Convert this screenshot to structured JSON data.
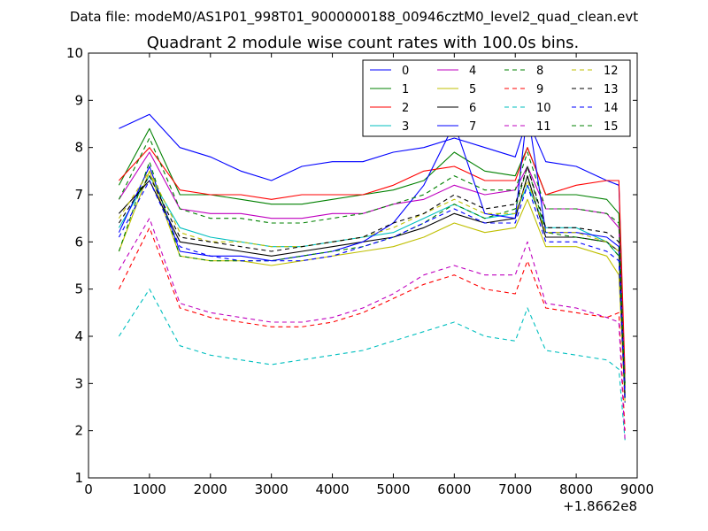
{
  "chart_data": {
    "type": "line",
    "suptitle": "Data file: modeM0/AS1P01_998T01_9000000188_00946cztM0_level2_quad_clean.evt",
    "title": "Quadrant 2 module wise count rates with 100.0s bins.",
    "xlabel": "",
    "ylabel": "",
    "x_offset_label": "+1.8662e8",
    "xlim": [
      0,
      9000
    ],
    "ylim": [
      1,
      10
    ],
    "x_ticks": [
      0,
      1000,
      2000,
      3000,
      4000,
      5000,
      6000,
      7000,
      8000,
      9000
    ],
    "x_tick_labels": [
      "0",
      "1000",
      "2000",
      "3000",
      "4000",
      "5000",
      "6000",
      "7000",
      "8000",
      "9000"
    ],
    "y_ticks": [
      1,
      2,
      3,
      4,
      5,
      6,
      7,
      8,
      9,
      10
    ],
    "y_tick_labels": [
      "1",
      "2",
      "3",
      "4",
      "5",
      "6",
      "7",
      "8",
      "9",
      "10"
    ],
    "grid": false,
    "legend_position": "top-right",
    "x": [
      500,
      1000,
      1500,
      2000,
      2500,
      3000,
      3500,
      4000,
      4500,
      5000,
      5500,
      6000,
      6500,
      7000,
      7200,
      7500,
      8000,
      8500,
      8700,
      8800
    ],
    "series": [
      {
        "name": "0",
        "color": "#0000ff",
        "dash": "solid",
        "values": [
          8.4,
          8.7,
          8.0,
          7.8,
          7.5,
          7.3,
          7.6,
          7.7,
          7.7,
          7.9,
          8.0,
          8.2,
          8.0,
          7.8,
          8.6,
          7.7,
          7.6,
          7.3,
          7.2,
          3.0
        ]
      },
      {
        "name": "1",
        "color": "#008000",
        "dash": "solid",
        "values": [
          7.2,
          8.4,
          7.0,
          7.0,
          6.9,
          6.8,
          6.8,
          6.9,
          7.0,
          7.1,
          7.3,
          7.9,
          7.5,
          7.4,
          8.0,
          7.0,
          7.0,
          6.9,
          6.6,
          3.0
        ]
      },
      {
        "name": "2",
        "color": "#ff0000",
        "dash": "solid",
        "values": [
          7.3,
          8.0,
          7.1,
          7.0,
          7.0,
          6.9,
          7.0,
          7.0,
          7.0,
          7.2,
          7.5,
          7.6,
          7.3,
          7.3,
          8.0,
          7.0,
          7.2,
          7.3,
          7.3,
          3.2
        ]
      },
      {
        "name": "3",
        "color": "#00bfbf",
        "dash": "solid",
        "values": [
          6.3,
          7.4,
          6.3,
          6.1,
          6.0,
          5.9,
          5.9,
          6.0,
          6.1,
          6.2,
          6.5,
          6.8,
          6.5,
          6.6,
          7.2,
          6.3,
          6.3,
          6.0,
          5.7,
          2.8
        ]
      },
      {
        "name": "4",
        "color": "#bf00bf",
        "dash": "solid",
        "values": [
          6.9,
          7.9,
          6.7,
          6.6,
          6.6,
          6.5,
          6.5,
          6.6,
          6.6,
          6.8,
          6.9,
          7.2,
          7.0,
          7.1,
          7.6,
          6.7,
          6.7,
          6.6,
          6.3,
          2.9
        ]
      },
      {
        "name": "5",
        "color": "#bfbf00",
        "dash": "solid",
        "values": [
          5.8,
          7.5,
          5.7,
          5.6,
          5.6,
          5.5,
          5.6,
          5.7,
          5.8,
          5.9,
          6.1,
          6.4,
          6.2,
          6.3,
          6.9,
          5.9,
          5.9,
          5.7,
          5.3,
          2.6
        ]
      },
      {
        "name": "6",
        "color": "#000000",
        "dash": "solid",
        "values": [
          6.6,
          7.3,
          6.0,
          5.9,
          5.8,
          5.7,
          5.8,
          5.9,
          6.0,
          6.1,
          6.3,
          6.6,
          6.4,
          6.5,
          7.4,
          6.1,
          6.1,
          6.0,
          5.8,
          2.7
        ]
      },
      {
        "name": "7",
        "color": "#0000ff",
        "dash": "solid",
        "values": [
          6.2,
          7.6,
          5.8,
          5.7,
          5.7,
          5.6,
          5.7,
          5.8,
          6.0,
          6.4,
          7.2,
          8.5,
          6.6,
          6.5,
          8.8,
          6.2,
          6.2,
          6.1,
          5.9,
          2.7
        ]
      },
      {
        "name": "8",
        "color": "#008000",
        "dash": "dashed",
        "values": [
          5.8,
          7.7,
          5.7,
          5.6,
          5.6,
          5.6,
          5.7,
          5.8,
          5.9,
          6.1,
          6.4,
          6.8,
          6.5,
          6.7,
          7.6,
          6.2,
          6.1,
          6.0,
          5.7,
          2.6
        ]
      },
      {
        "name": "9",
        "color": "#ff0000",
        "dash": "dashed",
        "values": [
          5.0,
          6.3,
          4.6,
          4.4,
          4.3,
          4.2,
          4.2,
          4.3,
          4.5,
          4.8,
          5.1,
          5.3,
          5.0,
          4.9,
          5.6,
          4.6,
          4.5,
          4.4,
          4.5,
          2.0
        ]
      },
      {
        "name": "10",
        "color": "#00bfbf",
        "dash": "dashed",
        "values": [
          4.0,
          5.0,
          3.8,
          3.6,
          3.5,
          3.4,
          3.5,
          3.6,
          3.7,
          3.9,
          4.1,
          4.3,
          4.0,
          3.9,
          4.6,
          3.7,
          3.6,
          3.5,
          3.3,
          1.8
        ]
      },
      {
        "name": "11",
        "color": "#bf00bf",
        "dash": "dashed",
        "values": [
          5.4,
          6.5,
          4.7,
          4.5,
          4.4,
          4.3,
          4.3,
          4.4,
          4.6,
          4.9,
          5.3,
          5.5,
          5.3,
          5.3,
          6.0,
          4.7,
          4.6,
          4.4,
          4.3,
          1.8
        ]
      },
      {
        "name": "12",
        "color": "#bfbf00",
        "dash": "dashed",
        "values": [
          6.5,
          7.5,
          6.2,
          6.0,
          6.0,
          5.9,
          5.9,
          6.0,
          6.1,
          6.3,
          6.6,
          6.9,
          6.6,
          6.6,
          7.3,
          6.2,
          6.2,
          6.0,
          5.8,
          2.7
        ]
      },
      {
        "name": "13",
        "color": "#000000",
        "dash": "dashed",
        "values": [
          6.4,
          7.4,
          6.1,
          6.0,
          5.9,
          5.8,
          5.9,
          6.0,
          6.1,
          6.4,
          6.6,
          7.0,
          6.7,
          6.8,
          7.6,
          6.3,
          6.3,
          6.2,
          6.0,
          2.7
        ]
      },
      {
        "name": "14",
        "color": "#0000ff",
        "dash": "dashed",
        "values": [
          6.1,
          7.3,
          5.9,
          5.7,
          5.6,
          5.6,
          5.6,
          5.7,
          5.9,
          6.1,
          6.4,
          6.7,
          6.4,
          6.4,
          7.2,
          6.0,
          6.0,
          5.8,
          5.6,
          2.6
        ]
      },
      {
        "name": "15",
        "color": "#008000",
        "dash": "dashed",
        "values": [
          6.9,
          8.2,
          6.7,
          6.5,
          6.5,
          6.4,
          6.4,
          6.5,
          6.6,
          6.8,
          7.0,
          7.4,
          7.1,
          7.1,
          7.9,
          6.7,
          6.7,
          6.6,
          6.4,
          2.9
        ]
      }
    ]
  }
}
